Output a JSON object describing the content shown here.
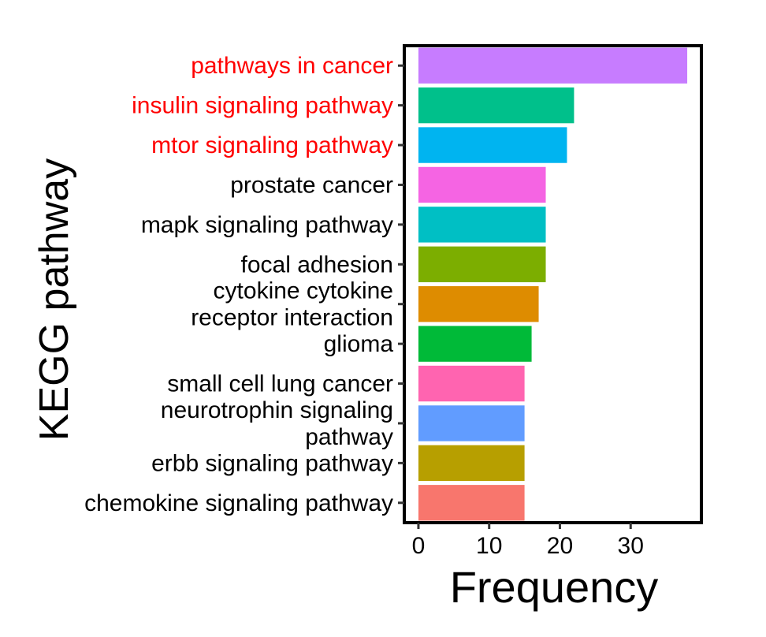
{
  "chart_data": {
    "type": "bar",
    "orientation": "horizontal",
    "categories": [
      "pathways in cancer",
      "insulin signaling pathway",
      "mtor signaling pathway",
      "prostate cancer",
      "mapk signaling pathway",
      "focal adhesion",
      "cytokine cytokine receptor interaction",
      "glioma",
      "small cell lung cancer",
      "neurotrophin signaling pathway",
      "erbb signaling pathway",
      "chemokine signaling pathway"
    ],
    "category_lines": [
      [
        "pathways in cancer"
      ],
      [
        "insulin signaling pathway"
      ],
      [
        "mtor signaling pathway"
      ],
      [
        "prostate cancer"
      ],
      [
        "mapk signaling pathway"
      ],
      [
        "focal adhesion"
      ],
      [
        "cytokine cytokine",
        "receptor interaction"
      ],
      [
        "glioma"
      ],
      [
        "small cell lung cancer"
      ],
      [
        "neurotrophin signaling",
        "pathway"
      ],
      [
        "erbb signaling pathway"
      ],
      [
        "chemokine signaling pathway"
      ]
    ],
    "values": [
      38,
      22,
      21,
      18,
      18,
      18,
      17,
      16,
      15,
      15,
      15,
      15
    ],
    "bar_colors": [
      "#C77CFF",
      "#00C08B",
      "#00B4F0",
      "#F564E3",
      "#00BFC4",
      "#7CAE00",
      "#DE8C00",
      "#00BA38",
      "#FF64B0",
      "#619CFF",
      "#B79F00",
      "#F8766D"
    ],
    "label_colors": [
      "#FF0000",
      "#FF0000",
      "#FF0000",
      "#000000",
      "#000000",
      "#000000",
      "#000000",
      "#000000",
      "#000000",
      "#000000",
      "#000000",
      "#000000"
    ],
    "xlabel": "Frequency",
    "ylabel": "KEGG pathway",
    "xlim": [
      -2,
      40
    ],
    "xticks": [
      "0",
      "10",
      "20",
      "30"
    ],
    "xtick_values": [
      0,
      10,
      20,
      30
    ],
    "grid": false,
    "legend": "none"
  }
}
